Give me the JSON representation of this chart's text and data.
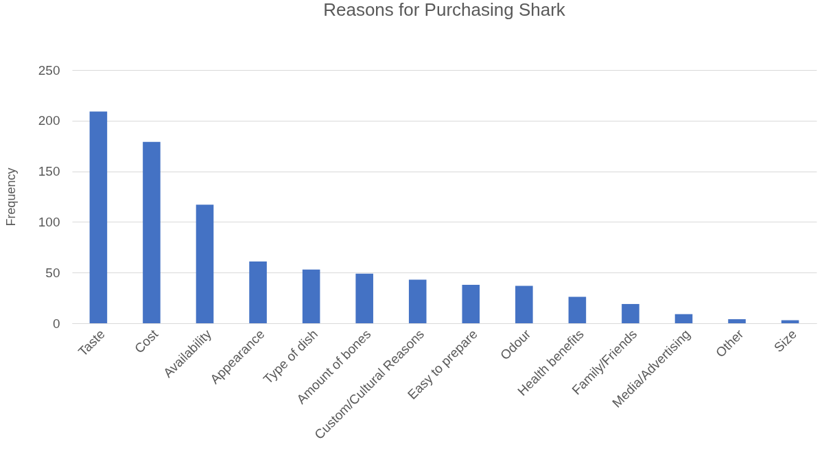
{
  "chart_data": {
    "type": "bar",
    "title": "Reasons for Purchasing Shark",
    "ylabel": "Frequency",
    "categories": [
      "Taste",
      "Cost",
      "Availability",
      "Appearance",
      "Type of dish",
      "Amount of bones",
      "Custom/Cultural Reasons",
      "Easy to prepare",
      "Odour",
      "Health benefits",
      "Family/Friends",
      "Media/Advertising",
      "Other",
      "Size"
    ],
    "values": [
      209,
      179,
      117,
      61,
      53,
      49,
      43,
      38,
      37,
      26,
      19,
      9,
      4,
      3
    ],
    "color": "#4472c4",
    "ylim": [
      0,
      250
    ],
    "yticks": [
      0,
      50,
      100,
      150,
      200,
      250
    ],
    "grid": "y"
  }
}
